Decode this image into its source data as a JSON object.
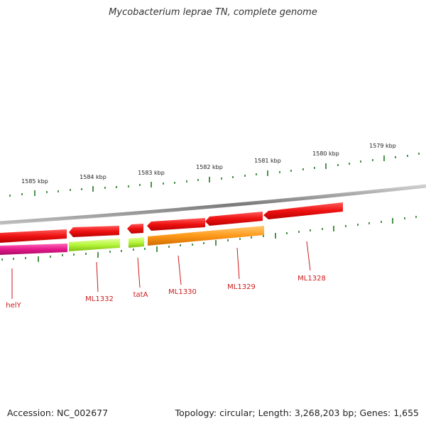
{
  "title": "Mycobacterium leprae TN, complete genome",
  "footer": {
    "accession": "Accession: NC_002677",
    "summary": "Topology: circular; Length: 3,268,203 bp; Genes: 1,655"
  },
  "colors": {
    "backbone": "#8c8c8c",
    "ticks": "#1f7a1f",
    "gene_red": "#ee1111",
    "gene_magenta": "#e6198c",
    "gene_lime": "#b5f53a",
    "gene_orange": "#ff9a1a",
    "label_red": "#cc1a1a"
  },
  "kbp_labels": [
    "1585 kbp",
    "1584 kbp",
    "1583 kbp",
    "1582 kbp",
    "1581 kbp",
    "1580 kbp",
    "1579 kbp"
  ],
  "gene_labels": [
    "helY",
    "ML1332",
    "tatA",
    "ML1330",
    "ML1329",
    "ML1328"
  ]
}
